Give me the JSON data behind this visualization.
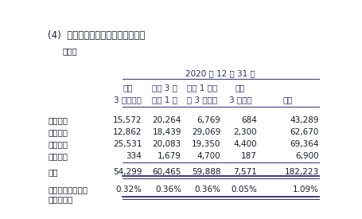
{
  "title": "(4)  已逾期贷款总额按逾期期限分析",
  "subtitle": "本集团",
  "date_header": "2020 年 12 月 31 日",
  "col_headers_line1": [
    "逾期",
    "逾期 3 个",
    "逾期 1 年以",
    "逾期",
    ""
  ],
  "col_headers_line2": [
    "3 个月以内",
    "月至 1 年",
    "上 3 年以内",
    "3 年以上",
    "合计"
  ],
  "row_labels": [
    "信用贷款",
    "保证贷款",
    "抵押贷款",
    "质押贷款",
    "合计",
    "占发放贷款和垫款\n总额百分比"
  ],
  "data": [
    [
      "15,572",
      "20,264",
      "6,769",
      "684",
      "43,289"
    ],
    [
      "12,862",
      "18,439",
      "29,069",
      "2,300",
      "62,670"
    ],
    [
      "25,531",
      "20,083",
      "19,350",
      "4,400",
      "69,364"
    ],
    [
      "334",
      "1,679",
      "4,700",
      "187",
      "6,900"
    ],
    [
      "54,299",
      "60,465",
      "59,888",
      "7,571",
      "182,223"
    ],
    [
      "0.32%",
      "0.36%",
      "0.36%",
      "0.05%",
      "1.09%"
    ]
  ],
  "bg_color": "#ffffff",
  "text_color": "#1a1a2e",
  "header_color": "#2c2c6e",
  "line_color": "#2c2c6e",
  "font_size": 7.5,
  "title_font_size": 8.5
}
